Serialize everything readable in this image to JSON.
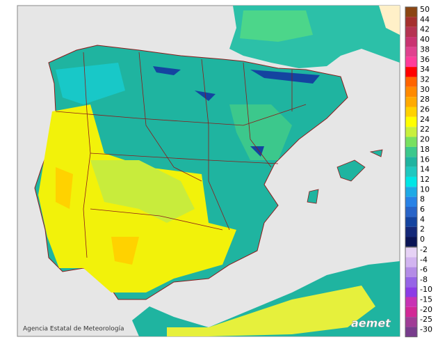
{
  "legend": {
    "warm": [
      {
        "value": 50,
        "color": "#8b4513"
      },
      {
        "value": 44,
        "color": "#a5302e"
      },
      {
        "value": 42,
        "color": "#b53352"
      },
      {
        "value": 40,
        "color": "#c93371"
      },
      {
        "value": 38,
        "color": "#e0418f"
      },
      {
        "value": 36,
        "color": "#ff3c9a"
      },
      {
        "value": 34,
        "color": "#ff0000"
      },
      {
        "value": 32,
        "color": "#ff6400"
      },
      {
        "value": 30,
        "color": "#ff8a00"
      },
      {
        "value": 28,
        "color": "#ffaa00"
      },
      {
        "value": 26,
        "color": "#ffd200"
      },
      {
        "value": 24,
        "color": "#ffff00"
      },
      {
        "value": 22,
        "color": "#c8f03c"
      },
      {
        "value": 20,
        "color": "#78e060"
      },
      {
        "value": 18,
        "color": "#3cc88c"
      },
      {
        "value": 16,
        "color": "#20b4a0"
      },
      {
        "value": 14,
        "color": "#20c8c0"
      },
      {
        "value": 12,
        "color": "#00e6e6"
      },
      {
        "value": 10,
        "color": "#1eaae6"
      },
      {
        "value": 8,
        "color": "#2882e6"
      },
      {
        "value": 6,
        "color": "#2864c8"
      },
      {
        "value": 4,
        "color": "#1444a0"
      },
      {
        "value": 2,
        "color": "#142878"
      },
      {
        "value": 0,
        "color": "#0a1455"
      }
    ],
    "cold": [
      {
        "value": -2,
        "color": "#e6d2f5"
      },
      {
        "value": -4,
        "color": "#d2b4f0"
      },
      {
        "value": -6,
        "color": "#b48ce6"
      },
      {
        "value": -8,
        "color": "#9664e6"
      },
      {
        "value": -10,
        "color": "#8c3ce6"
      },
      {
        "value": -15,
        "color": "#c832b4"
      },
      {
        "value": -20,
        "color": "#d22896"
      },
      {
        "value": -25,
        "color": "#a03c96"
      },
      {
        "value": -30,
        "color": "#783c8c"
      }
    ]
  },
  "credit": "Agencia Estatal de Meteorología",
  "logo": "aemet"
}
